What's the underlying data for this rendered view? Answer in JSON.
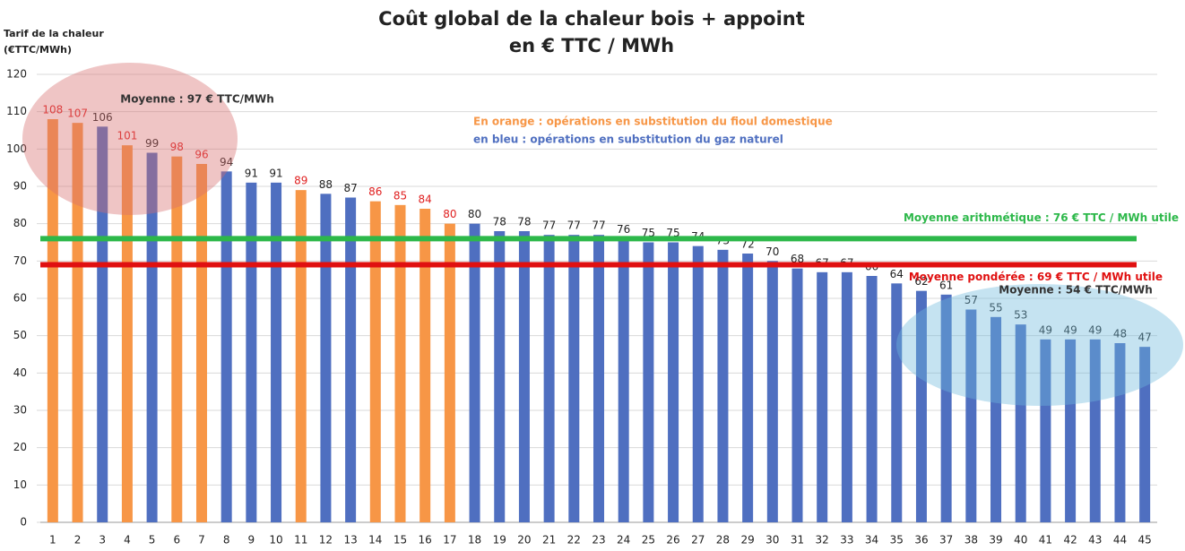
{
  "chart_data": {
    "type": "bar",
    "title": [
      "Coût global de la chaleur bois + appoint",
      "en € TTC / MWh"
    ],
    "y_label": [
      "Tarif de la chaleur",
      "(€TTC/MWh)"
    ],
    "categories": [
      "1",
      "2",
      "3",
      "4",
      "5",
      "6",
      "7",
      "8",
      "9",
      "10",
      "11",
      "12",
      "13",
      "14",
      "15",
      "16",
      "17",
      "18",
      "19",
      "20",
      "21",
      "22",
      "23",
      "24",
      "25",
      "26",
      "27",
      "28",
      "29",
      "30",
      "31",
      "32",
      "33",
      "34",
      "35",
      "36",
      "37",
      "38",
      "39",
      "40",
      "41",
      "42",
      "43",
      "44",
      "45"
    ],
    "values": [
      108,
      107,
      106,
      101,
      99,
      98,
      96,
      94,
      91,
      91,
      89,
      88,
      87,
      86,
      85,
      84,
      80,
      80,
      78,
      78,
      77,
      77,
      77,
      76,
      75,
      75,
      74,
      73,
      72,
      70,
      68,
      67,
      67,
      66,
      64,
      62,
      61,
      57,
      55,
      53,
      49,
      49,
      49,
      48,
      47
    ],
    "colors": [
      "#f79646",
      "#f79646",
      "#4f6fc0",
      "#f79646",
      "#4f6fc0",
      "#f79646",
      "#f79646",
      "#4f6fc0",
      "#4f6fc0",
      "#4f6fc0",
      "#f79646",
      "#4f6fc0",
      "#4f6fc0",
      "#f79646",
      "#f79646",
      "#f79646",
      "#f79646",
      "#4f6fc0",
      "#4f6fc0",
      "#4f6fc0",
      "#4f6fc0",
      "#4f6fc0",
      "#4f6fc0",
      "#4f6fc0",
      "#4f6fc0",
      "#4f6fc0",
      "#4f6fc0",
      "#4f6fc0",
      "#4f6fc0",
      "#4f6fc0",
      "#4f6fc0",
      "#4f6fc0",
      "#4f6fc0",
      "#4f6fc0",
      "#4f6fc0",
      "#4f6fc0",
      "#4f6fc0",
      "#4f6fc0",
      "#4f6fc0",
      "#4f6fc0",
      "#4f6fc0",
      "#4f6fc0",
      "#4f6fc0",
      "#4f6fc0",
      "#4f6fc0"
    ],
    "label_colors": [
      "#e02020",
      "#e02020",
      "#222222",
      "#e02020",
      "#222222",
      "#e02020",
      "#e02020",
      "#222222",
      "#222222",
      "#222222",
      "#e02020",
      "#222222",
      "#222222",
      "#e02020",
      "#e02020",
      "#e02020",
      "#e02020",
      "#222222",
      "#222222",
      "#222222",
      "#222222",
      "#222222",
      "#222222",
      "#222222",
      "#222222",
      "#222222",
      "#222222",
      "#222222",
      "#222222",
      "#222222",
      "#222222",
      "#222222",
      "#222222",
      "#222222",
      "#222222",
      "#222222",
      "#222222",
      "#222222",
      "#222222",
      "#222222",
      "#222222",
      "#222222",
      "#222222",
      "#222222",
      "#222222"
    ],
    "ylim": [
      0,
      120
    ],
    "yticks": [
      0,
      10,
      20,
      30,
      40,
      50,
      60,
      70,
      80,
      90,
      100,
      110,
      120
    ],
    "grid": true,
    "reference_lines": [
      {
        "value": 76,
        "label": "Moyenne arithmétique : 76 € TTC / MWh utile",
        "color": "#2db84a"
      },
      {
        "value": 69,
        "label": "Moyenne pondérée : 69 € TTC / MWh utile",
        "color": "#e01010"
      }
    ],
    "annotations": [
      {
        "text": "En orange : opérations en substitution du fioul domestique",
        "color": "#f79646"
      },
      {
        "text": "en bleu : opérations en substitution du gaz naturel",
        "color": "#4f6fc0"
      },
      {
        "text": "Moyenne : 97 € TTC/MWh",
        "color": "#333333"
      },
      {
        "text": "Moyenne : 54 € TTC/MWh",
        "color": "#333333"
      }
    ]
  }
}
